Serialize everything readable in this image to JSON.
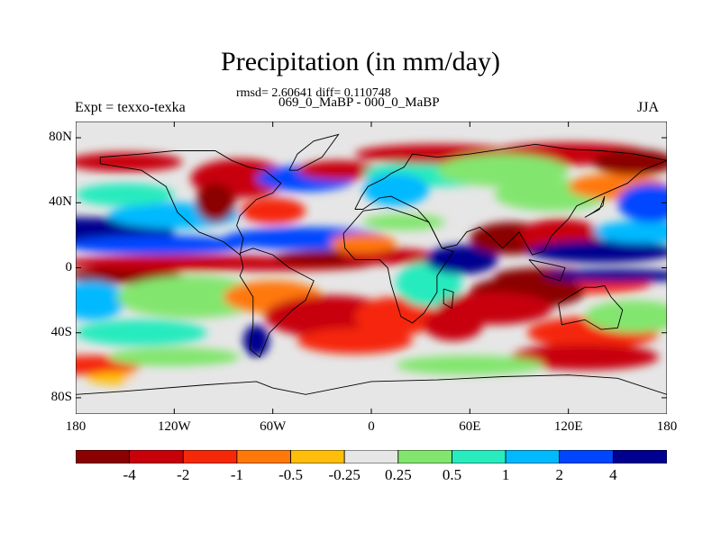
{
  "title": "Precipitation (in mm/day)",
  "stats_text": "rmsd= 2.60641 diff= 0.110748",
  "runs_text": "069_0_MaBP - 000_0_MaBP",
  "left_label": "Expt = texxo-texka",
  "right_label": "JJA",
  "map": {
    "projection": "cylindrical equidistant",
    "lon_range": [
      -180,
      180
    ],
    "lat_range": [
      -90,
      90
    ],
    "lat_ticks": [
      "80N",
      "40N",
      "0",
      "40S",
      "80S"
    ],
    "lon_ticks": [
      "180",
      "120W",
      "60W",
      "0",
      "60E",
      "120E",
      "180"
    ],
    "background_color": "#e6e6e6",
    "coastline_color": "#000000"
  },
  "colorbar": {
    "colors": [
      "#8b0000",
      "#c8000a",
      "#f5280a",
      "#ff780a",
      "#ffbe0a",
      "#e6e6e6",
      "#82e66e",
      "#28ebbe",
      "#00b9ff",
      "#0046ff",
      "#000090"
    ],
    "labels": [
      "-4",
      "-2",
      "-1",
      "-0.5",
      "-0.25",
      "0.25",
      "0.5",
      "1",
      "2",
      "4"
    ]
  }
}
